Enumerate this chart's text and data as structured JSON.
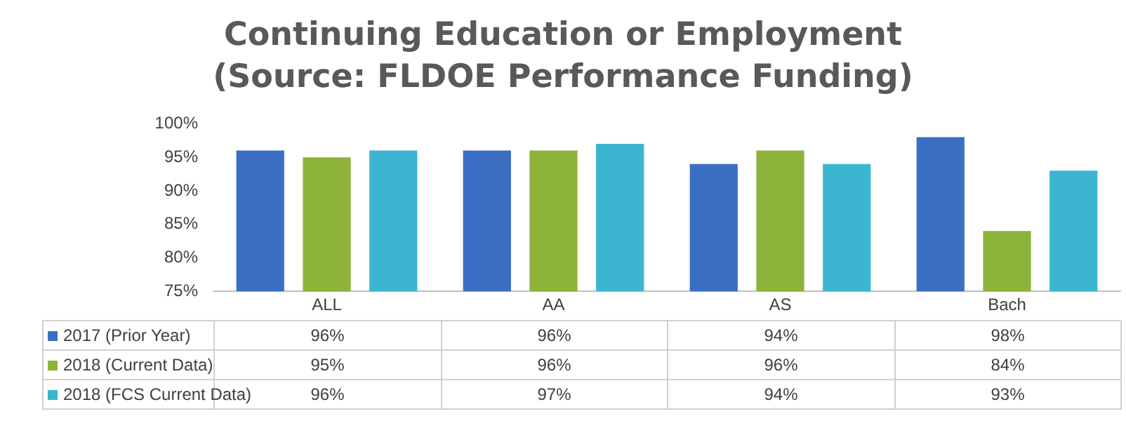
{
  "chart_data": {
    "type": "bar",
    "title": "Continuing Education or Employment",
    "subtitle": "(Source: FLDOE Performance Funding)",
    "categories": [
      "ALL",
      "AA",
      "AS",
      "Bach"
    ],
    "series": [
      {
        "name": "2017 (Prior Year)",
        "color": "#3a6fc4",
        "values": [
          96,
          96,
          94,
          98
        ],
        "value_labels": [
          "96%",
          "96%",
          "94%",
          "98%"
        ]
      },
      {
        "name": "2018 (Current Data)",
        "color": "#8db33a",
        "values": [
          95,
          96,
          96,
          84
        ],
        "value_labels": [
          "95%",
          "96%",
          "96%",
          "84%"
        ]
      },
      {
        "name": "2018 (FCS Current Data)",
        "color": "#3bb5d0",
        "values": [
          96,
          97,
          94,
          93
        ],
        "value_labels": [
          "96%",
          "97%",
          "94%",
          "93%"
        ]
      }
    ],
    "ylim": [
      75,
      100
    ],
    "yticks": [
      {
        "value": 75,
        "label": "75%"
      },
      {
        "value": 80,
        "label": "80%"
      },
      {
        "value": 85,
        "label": "85%"
      },
      {
        "value": 90,
        "label": "90%"
      },
      {
        "value": 95,
        "label": "95%"
      },
      {
        "value": 100,
        "label": "100%"
      }
    ],
    "grid": false,
    "legend": "bottom"
  }
}
